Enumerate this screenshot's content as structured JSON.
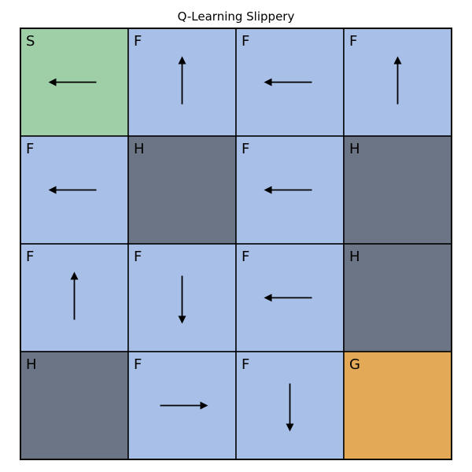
{
  "title": "Q-Learning Slippery",
  "colors": {
    "start": "#9fcfa7",
    "frozen": "#a8c0e8",
    "hole": "#6b7585",
    "goal": "#e3a957",
    "grid_line": "#000000",
    "arrow": "#000000"
  },
  "legend_types": {
    "S": "start",
    "F": "frozen",
    "H": "hole",
    "G": "goal"
  },
  "grid": {
    "rows": 4,
    "cols": 4,
    "cells": [
      {
        "label": "S",
        "type": "start",
        "policy": "left"
      },
      {
        "label": "F",
        "type": "frozen",
        "policy": "up"
      },
      {
        "label": "F",
        "type": "frozen",
        "policy": "left"
      },
      {
        "label": "F",
        "type": "frozen",
        "policy": "up"
      },
      {
        "label": "F",
        "type": "frozen",
        "policy": "left"
      },
      {
        "label": "H",
        "type": "hole",
        "policy": null
      },
      {
        "label": "F",
        "type": "frozen",
        "policy": "left"
      },
      {
        "label": "H",
        "type": "hole",
        "policy": null
      },
      {
        "label": "F",
        "type": "frozen",
        "policy": "up"
      },
      {
        "label": "F",
        "type": "frozen",
        "policy": "down"
      },
      {
        "label": "F",
        "type": "frozen",
        "policy": "left"
      },
      {
        "label": "H",
        "type": "hole",
        "policy": null
      },
      {
        "label": "H",
        "type": "hole",
        "policy": null
      },
      {
        "label": "F",
        "type": "frozen",
        "policy": "right"
      },
      {
        "label": "F",
        "type": "frozen",
        "policy": "down"
      },
      {
        "label": "G",
        "type": "goal",
        "policy": null
      }
    ]
  }
}
